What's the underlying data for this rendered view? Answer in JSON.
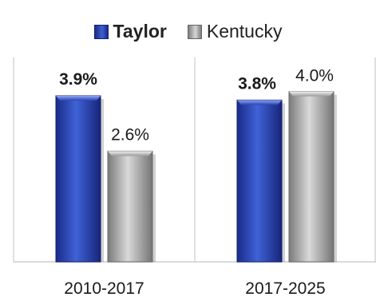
{
  "chart_data": {
    "type": "bar",
    "categories": [
      "2010-2017",
      "2017-2025"
    ],
    "series": [
      {
        "name": "Taylor",
        "values": [
          3.9,
          3.8
        ],
        "labels": [
          "3.9%",
          "3.8%"
        ],
        "color": "#2a44b3"
      },
      {
        "name": "Kentucky",
        "values": [
          2.6,
          4.0
        ],
        "labels": [
          "2.6%",
          "4.0%"
        ],
        "color": "#b0b0b0"
      }
    ],
    "ylim": [
      0,
      4.8
    ],
    "legend_position": "top-center",
    "grid": false
  }
}
